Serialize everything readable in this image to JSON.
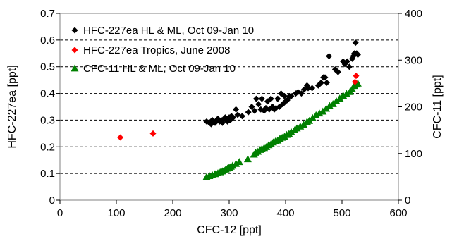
{
  "chart_data": {
    "type": "scatter",
    "xlabel": "CFC-12 [ppt]",
    "ylabel_left": "HFC-227ea [ppt]",
    "ylabel_right": "CFC-11 [ppt]",
    "xlim": [
      0,
      600
    ],
    "xticks": [
      "0",
      "100",
      "200",
      "300",
      "400",
      "500",
      "600"
    ],
    "ylim_left": [
      0,
      0.7
    ],
    "yticks_left": [
      "0",
      "0.1",
      "0.2",
      "0.3",
      "0.4",
      "0.5",
      "0.6",
      "0.7"
    ],
    "ylim_right": [
      0,
      400
    ],
    "yticks_right": [
      "0",
      "100",
      "200",
      "300",
      "400"
    ],
    "grid": "horizontal dashed",
    "legend_position": "top-left",
    "series": [
      {
        "name": "HFC-227ea HL & ML, Oct 09-Jan 10",
        "axis": "left",
        "marker": "diamond",
        "color": "#000000",
        "points": [
          [
            260,
            0.295
          ],
          [
            265,
            0.29
          ],
          [
            268,
            0.285
          ],
          [
            270,
            0.3
          ],
          [
            272,
            0.295
          ],
          [
            275,
            0.29
          ],
          [
            278,
            0.3
          ],
          [
            280,
            0.305
          ],
          [
            283,
            0.295
          ],
          [
            286,
            0.3
          ],
          [
            288,
            0.29
          ],
          [
            291,
            0.305
          ],
          [
            293,
            0.31
          ],
          [
            295,
            0.3
          ],
          [
            297,
            0.295
          ],
          [
            300,
            0.31
          ],
          [
            302,
            0.3
          ],
          [
            304,
            0.315
          ],
          [
            307,
            0.31
          ],
          [
            312,
            0.34
          ],
          [
            315,
            0.32
          ],
          [
            323,
            0.315
          ],
          [
            334,
            0.33
          ],
          [
            340,
            0.35
          ],
          [
            345,
            0.335
          ],
          [
            348,
            0.38
          ],
          [
            352,
            0.36
          ],
          [
            356,
            0.34
          ],
          [
            358,
            0.38
          ],
          [
            362,
            0.335
          ],
          [
            365,
            0.345
          ],
          [
            368,
            0.37
          ],
          [
            371,
            0.34
          ],
          [
            374,
            0.38
          ],
          [
            377,
            0.35
          ],
          [
            380,
            0.34
          ],
          [
            383,
            0.345
          ],
          [
            386,
            0.38
          ],
          [
            389,
            0.35
          ],
          [
            392,
            0.4
          ],
          [
            395,
            0.36
          ],
          [
            398,
            0.39
          ],
          [
            400,
            0.37
          ],
          [
            403,
            0.375
          ],
          [
            407,
            0.39
          ],
          [
            410,
            0.39
          ],
          [
            418,
            0.4
          ],
          [
            422,
            0.405
          ],
          [
            428,
            0.4
          ],
          [
            433,
            0.415
          ],
          [
            438,
            0.43
          ],
          [
            440,
            0.42
          ],
          [
            447,
            0.42
          ],
          [
            458,
            0.43
          ],
          [
            463,
            0.44
          ],
          [
            467,
            0.46
          ],
          [
            470,
            0.46
          ],
          [
            473,
            0.44
          ],
          [
            477,
            0.54
          ],
          [
            488,
            0.49
          ],
          [
            493,
            0.48
          ],
          [
            502,
            0.52
          ],
          [
            505,
            0.51
          ],
          [
            509,
            0.52
          ],
          [
            513,
            0.5
          ],
          [
            518,
            0.53
          ],
          [
            520,
            0.54
          ],
          [
            522,
            0.55
          ],
          [
            524,
            0.59
          ],
          [
            526,
            0.55
          ],
          [
            528,
            0.545
          ]
        ]
      },
      {
        "name": "HFC-227ea Tropics, June 2008",
        "axis": "left",
        "marker": "diamond",
        "color": "#ff0000",
        "points": [
          [
            107,
            0.235
          ],
          [
            165,
            0.25
          ],
          [
            523,
            0.443
          ],
          [
            525,
            0.466
          ]
        ]
      },
      {
        "name": "CFC-11 HL & ML, Oct 09-Jan 10",
        "axis": "right",
        "marker": "triangle",
        "color": "#008000",
        "points": [
          [
            260,
            50
          ],
          [
            265,
            52
          ],
          [
            270,
            54
          ],
          [
            275,
            56
          ],
          [
            280,
            58
          ],
          [
            284,
            60
          ],
          [
            288,
            62
          ],
          [
            291,
            64
          ],
          [
            294,
            66
          ],
          [
            297,
            68
          ],
          [
            300,
            70
          ],
          [
            303,
            72
          ],
          [
            306,
            74
          ],
          [
            312,
            78
          ],
          [
            318,
            82
          ],
          [
            333,
            88
          ],
          [
            344,
            98
          ],
          [
            347,
            102
          ],
          [
            351,
            104
          ],
          [
            355,
            108
          ],
          [
            358,
            110
          ],
          [
            362,
            112
          ],
          [
            366,
            114
          ],
          [
            370,
            118
          ],
          [
            374,
            120
          ],
          [
            378,
            124
          ],
          [
            382,
            126
          ],
          [
            386,
            128
          ],
          [
            390,
            132
          ],
          [
            394,
            134
          ],
          [
            398,
            136
          ],
          [
            402,
            140
          ],
          [
            406,
            142
          ],
          [
            410,
            146
          ],
          [
            416,
            150
          ],
          [
            420,
            154
          ],
          [
            426,
            158
          ],
          [
            432,
            162
          ],
          [
            438,
            168
          ],
          [
            442,
            170
          ],
          [
            448,
            176
          ],
          [
            454,
            182
          ],
          [
            460,
            186
          ],
          [
            466,
            190
          ],
          [
            472,
            196
          ],
          [
            478,
            202
          ],
          [
            484,
            206
          ],
          [
            490,
            212
          ],
          [
            496,
            218
          ],
          [
            502,
            224
          ],
          [
            508,
            228
          ],
          [
            514,
            232
          ],
          [
            518,
            238
          ],
          [
            522,
            245
          ],
          [
            526,
            248
          ],
          [
            528,
            250
          ]
        ]
      }
    ]
  }
}
